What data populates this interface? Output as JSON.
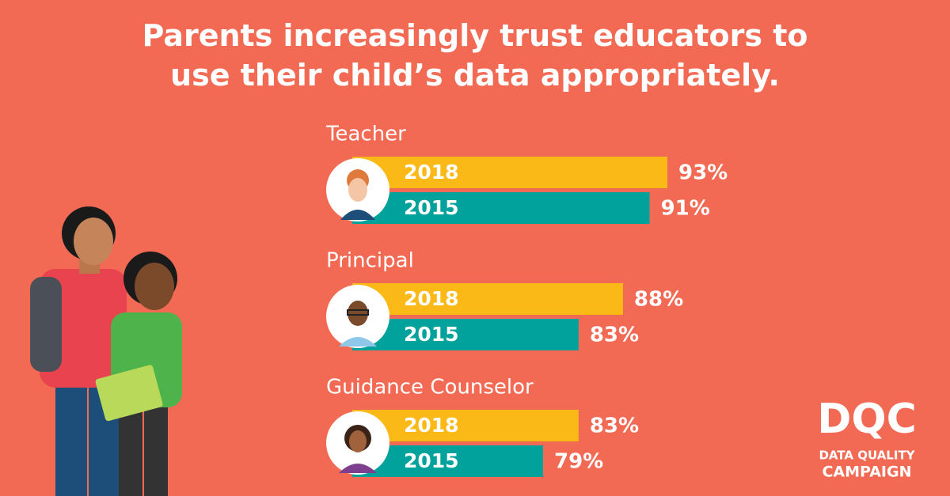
{
  "chart_data": {
    "type": "bar",
    "orientation": "horizontal",
    "title": "Parents increasingly trust educators to use their child’s data appropriately.",
    "categories": [
      "Teacher",
      "Principal",
      "Guidance Counselor"
    ],
    "series": [
      {
        "name": "2018",
        "color": "#fbb917",
        "values": [
          93,
          88,
          83
        ],
        "value_labels": [
          "93%",
          "88%",
          "83%"
        ]
      },
      {
        "name": "2015",
        "color": "#00a29b",
        "values": [
          91,
          83,
          79
        ],
        "value_labels": [
          "91%",
          "83%",
          "79%"
        ]
      }
    ]
  },
  "logo": {
    "mark": "DQC",
    "lines": [
      "DATA QUALITY",
      "CAMPAIGN"
    ]
  }
}
